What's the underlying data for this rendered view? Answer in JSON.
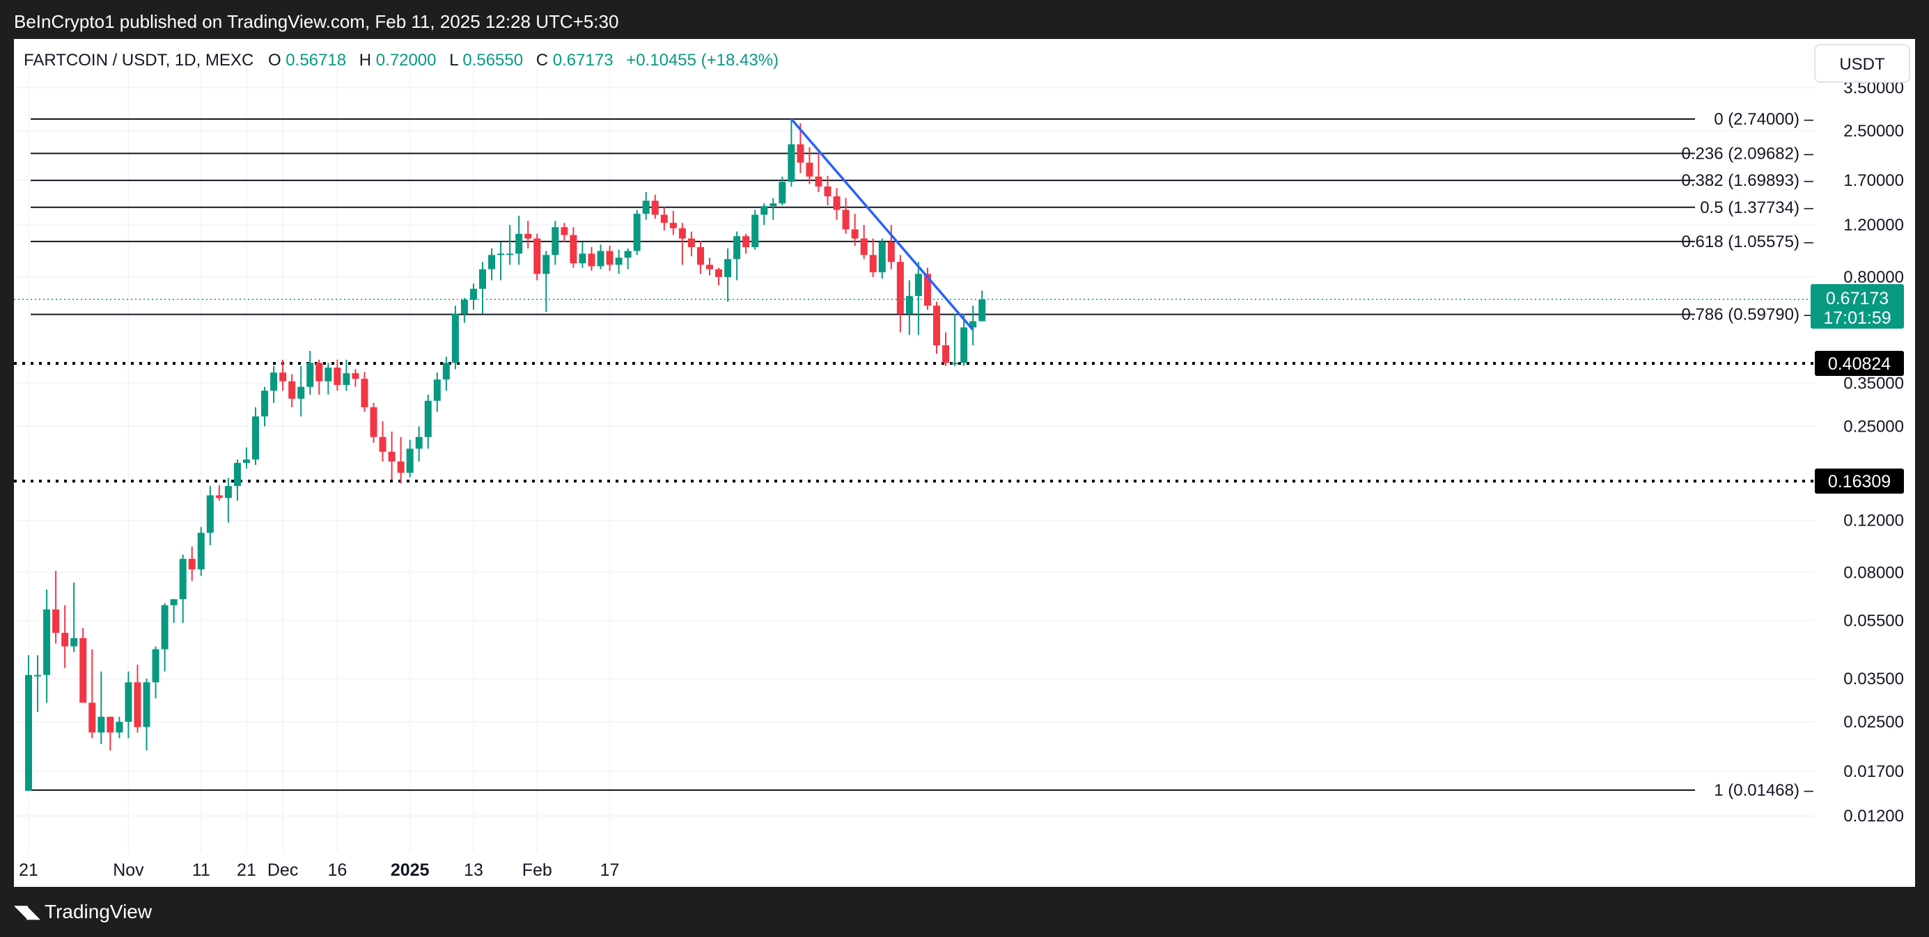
{
  "header": {
    "published": "BeInCrypto1 published on TradingView.com, Feb 11, 2025 12:28 UTC+5:30"
  },
  "footer": {
    "brand": "TradingView",
    "logo_icon": "tradingview-logo-icon"
  },
  "legend": {
    "symbol": "FARTCOIN / USDT, 1D, MEXC",
    "o_label": "O",
    "o_value": "0.56718",
    "h_label": "H",
    "h_value": "0.72000",
    "l_label": "L",
    "l_value": "0.56550",
    "c_label": "C",
    "c_value": "0.67173",
    "change": "+0.10455 (+18.43%)"
  },
  "currency": "USDT",
  "price_badge": {
    "price": "0.67173",
    "countdown": "17:01:59"
  },
  "colors": {
    "up": "#089981",
    "down": "#f23645",
    "trendline": "#2962ff",
    "text": "#131722",
    "grid": "#f0f3fa",
    "current_line": "#089981"
  },
  "chart_data": {
    "type": "candlestick",
    "y_scale": "log",
    "ylim": [
      0.0095,
      3.9
    ],
    "y_ticks": [
      "3.50000",
      "2.50000",
      "1.70000",
      "1.20000",
      "0.80000",
      "0.35000",
      "0.25000",
      "0.12000",
      "0.08000",
      "0.05500",
      "0.03500",
      "0.02500",
      "0.01700",
      "0.01200"
    ],
    "x_ticks": [
      {
        "label": "21",
        "bold": false
      },
      {
        "label": "Nov",
        "bold": false
      },
      {
        "label": "11",
        "bold": false
      },
      {
        "label": "21",
        "bold": false
      },
      {
        "label": "Dec",
        "bold": false
      },
      {
        "label": "16",
        "bold": false
      },
      {
        "label": "2025",
        "bold": true
      },
      {
        "label": "13",
        "bold": false
      },
      {
        "label": "Feb",
        "bold": false
      },
      {
        "label": "17",
        "bold": false
      }
    ],
    "fib_levels": [
      {
        "ratio": "0",
        "value": 2.74,
        "label": "0 (2.74000)"
      },
      {
        "ratio": "0.236",
        "value": 2.09682,
        "label": "0.236 (2.09682)"
      },
      {
        "ratio": "0.382",
        "value": 1.69893,
        "label": "0.382 (1.69893)"
      },
      {
        "ratio": "0.5",
        "value": 1.37734,
        "label": "0.5 (1.37734)"
      },
      {
        "ratio": "0.618",
        "value": 1.05575,
        "label": "0.618 (1.05575)"
      },
      {
        "ratio": "0.786",
        "value": 0.5979,
        "label": "0.786 (0.59790)"
      },
      {
        "ratio": "1",
        "value": 0.01468,
        "label": "1 (0.01468)"
      }
    ],
    "support_levels": [
      {
        "value": 0.40824,
        "label": "0.40824"
      },
      {
        "value": 0.16309,
        "label": "0.16309"
      }
    ],
    "current_price": 0.67173,
    "candles": [
      {
        "o": 0.0146,
        "h": 0.042,
        "l": 0.0146,
        "c": 0.036
      },
      {
        "o": 0.036,
        "h": 0.042,
        "l": 0.027,
        "c": 0.036
      },
      {
        "o": 0.036,
        "h": 0.07,
        "l": 0.029,
        "c": 0.06
      },
      {
        "o": 0.06,
        "h": 0.081,
        "l": 0.046,
        "c": 0.05
      },
      {
        "o": 0.05,
        "h": 0.062,
        "l": 0.038,
        "c": 0.045
      },
      {
        "o": 0.045,
        "h": 0.074,
        "l": 0.043,
        "c": 0.048
      },
      {
        "o": 0.048,
        "h": 0.052,
        "l": 0.029,
        "c": 0.029
      },
      {
        "o": 0.029,
        "h": 0.044,
        "l": 0.022,
        "c": 0.023
      },
      {
        "o": 0.023,
        "h": 0.037,
        "l": 0.021,
        "c": 0.026
      },
      {
        "o": 0.026,
        "h": 0.026,
        "l": 0.02,
        "c": 0.023
      },
      {
        "o": 0.023,
        "h": 0.026,
        "l": 0.022,
        "c": 0.025
      },
      {
        "o": 0.025,
        "h": 0.037,
        "l": 0.022,
        "c": 0.034
      },
      {
        "o": 0.034,
        "h": 0.039,
        "l": 0.023,
        "c": 0.024
      },
      {
        "o": 0.024,
        "h": 0.035,
        "l": 0.02,
        "c": 0.034
      },
      {
        "o": 0.034,
        "h": 0.045,
        "l": 0.03,
        "c": 0.044
      },
      {
        "o": 0.044,
        "h": 0.063,
        "l": 0.037,
        "c": 0.062
      },
      {
        "o": 0.062,
        "h": 0.065,
        "l": 0.054,
        "c": 0.065
      },
      {
        "o": 0.065,
        "h": 0.092,
        "l": 0.054,
        "c": 0.089
      },
      {
        "o": 0.089,
        "h": 0.098,
        "l": 0.075,
        "c": 0.082
      },
      {
        "o": 0.082,
        "h": 0.114,
        "l": 0.078,
        "c": 0.109
      },
      {
        "o": 0.109,
        "h": 0.157,
        "l": 0.099,
        "c": 0.146
      },
      {
        "o": 0.146,
        "h": 0.158,
        "l": 0.14,
        "c": 0.143
      },
      {
        "o": 0.143,
        "h": 0.167,
        "l": 0.118,
        "c": 0.157
      },
      {
        "o": 0.157,
        "h": 0.193,
        "l": 0.14,
        "c": 0.188
      },
      {
        "o": 0.188,
        "h": 0.212,
        "l": 0.18,
        "c": 0.193
      },
      {
        "o": 0.193,
        "h": 0.29,
        "l": 0.185,
        "c": 0.27
      },
      {
        "o": 0.27,
        "h": 0.34,
        "l": 0.25,
        "c": 0.33
      },
      {
        "o": 0.33,
        "h": 0.4,
        "l": 0.3,
        "c": 0.38
      },
      {
        "o": 0.38,
        "h": 0.42,
        "l": 0.33,
        "c": 0.355
      },
      {
        "o": 0.355,
        "h": 0.375,
        "l": 0.29,
        "c": 0.31
      },
      {
        "o": 0.31,
        "h": 0.4,
        "l": 0.27,
        "c": 0.34
      },
      {
        "o": 0.34,
        "h": 0.45,
        "l": 0.32,
        "c": 0.41
      },
      {
        "o": 0.41,
        "h": 0.42,
        "l": 0.32,
        "c": 0.355
      },
      {
        "o": 0.355,
        "h": 0.41,
        "l": 0.32,
        "c": 0.395
      },
      {
        "o": 0.395,
        "h": 0.42,
        "l": 0.33,
        "c": 0.345
      },
      {
        "o": 0.345,
        "h": 0.42,
        "l": 0.33,
        "c": 0.378
      },
      {
        "o": 0.378,
        "h": 0.39,
        "l": 0.34,
        "c": 0.362
      },
      {
        "o": 0.362,
        "h": 0.382,
        "l": 0.28,
        "c": 0.29
      },
      {
        "o": 0.29,
        "h": 0.3,
        "l": 0.22,
        "c": 0.23
      },
      {
        "o": 0.23,
        "h": 0.26,
        "l": 0.19,
        "c": 0.205
      },
      {
        "o": 0.205,
        "h": 0.24,
        "l": 0.165,
        "c": 0.19
      },
      {
        "o": 0.19,
        "h": 0.23,
        "l": 0.16,
        "c": 0.174
      },
      {
        "o": 0.174,
        "h": 0.225,
        "l": 0.168,
        "c": 0.21
      },
      {
        "o": 0.21,
        "h": 0.25,
        "l": 0.19,
        "c": 0.23
      },
      {
        "o": 0.23,
        "h": 0.32,
        "l": 0.21,
        "c": 0.305
      },
      {
        "o": 0.305,
        "h": 0.38,
        "l": 0.28,
        "c": 0.36
      },
      {
        "o": 0.36,
        "h": 0.43,
        "l": 0.33,
        "c": 0.41
      },
      {
        "o": 0.41,
        "h": 0.64,
        "l": 0.39,
        "c": 0.6
      },
      {
        "o": 0.6,
        "h": 0.68,
        "l": 0.56,
        "c": 0.67
      },
      {
        "o": 0.67,
        "h": 0.76,
        "l": 0.62,
        "c": 0.73
      },
      {
        "o": 0.73,
        "h": 0.9,
        "l": 0.6,
        "c": 0.85
      },
      {
        "o": 0.85,
        "h": 1.0,
        "l": 0.78,
        "c": 0.95
      },
      {
        "o": 0.95,
        "h": 1.05,
        "l": 0.78,
        "c": 0.96
      },
      {
        "o": 0.96,
        "h": 1.2,
        "l": 0.88,
        "c": 0.96
      },
      {
        "o": 0.96,
        "h": 1.29,
        "l": 0.88,
        "c": 1.12
      },
      {
        "o": 1.12,
        "h": 1.24,
        "l": 1.0,
        "c": 1.08
      },
      {
        "o": 1.08,
        "h": 1.12,
        "l": 0.78,
        "c": 0.82
      },
      {
        "o": 0.82,
        "h": 0.98,
        "l": 0.61,
        "c": 0.95
      },
      {
        "o": 0.95,
        "h": 1.24,
        "l": 0.88,
        "c": 1.18
      },
      {
        "o": 1.18,
        "h": 1.22,
        "l": 1.05,
        "c": 1.11
      },
      {
        "o": 1.11,
        "h": 1.18,
        "l": 0.86,
        "c": 0.89
      },
      {
        "o": 0.89,
        "h": 1.05,
        "l": 0.86,
        "c": 0.96
      },
      {
        "o": 0.96,
        "h": 1.01,
        "l": 0.84,
        "c": 0.87
      },
      {
        "o": 0.87,
        "h": 1.03,
        "l": 0.85,
        "c": 0.98
      },
      {
        "o": 0.98,
        "h": 1.02,
        "l": 0.84,
        "c": 0.88
      },
      {
        "o": 0.88,
        "h": 0.99,
        "l": 0.82,
        "c": 0.93
      },
      {
        "o": 0.93,
        "h": 1.0,
        "l": 0.85,
        "c": 0.98
      },
      {
        "o": 0.98,
        "h": 1.35,
        "l": 0.95,
        "c": 1.31
      },
      {
        "o": 1.31,
        "h": 1.55,
        "l": 1.25,
        "c": 1.45
      },
      {
        "o": 1.45,
        "h": 1.52,
        "l": 1.26,
        "c": 1.3
      },
      {
        "o": 1.3,
        "h": 1.38,
        "l": 1.15,
        "c": 1.22
      },
      {
        "o": 1.22,
        "h": 1.34,
        "l": 1.11,
        "c": 1.17
      },
      {
        "o": 1.17,
        "h": 1.22,
        "l": 0.88,
        "c": 1.08
      },
      {
        "o": 1.08,
        "h": 1.14,
        "l": 0.94,
        "c": 1.01
      },
      {
        "o": 1.01,
        "h": 1.06,
        "l": 0.82,
        "c": 0.88
      },
      {
        "o": 0.88,
        "h": 0.93,
        "l": 0.81,
        "c": 0.85
      },
      {
        "o": 0.85,
        "h": 0.86,
        "l": 0.75,
        "c": 0.8
      },
      {
        "o": 0.8,
        "h": 1.0,
        "l": 0.66,
        "c": 0.92
      },
      {
        "o": 0.92,
        "h": 1.14,
        "l": 0.78,
        "c": 1.1
      },
      {
        "o": 1.1,
        "h": 1.12,
        "l": 0.96,
        "c": 1.01
      },
      {
        "o": 1.01,
        "h": 1.35,
        "l": 0.99,
        "c": 1.3
      },
      {
        "o": 1.3,
        "h": 1.42,
        "l": 1.2,
        "c": 1.39
      },
      {
        "o": 1.39,
        "h": 1.48,
        "l": 1.25,
        "c": 1.42
      },
      {
        "o": 1.42,
        "h": 1.75,
        "l": 1.4,
        "c": 1.68
      },
      {
        "o": 1.68,
        "h": 2.74,
        "l": 1.62,
        "c": 2.25
      },
      {
        "o": 2.25,
        "h": 2.65,
        "l": 1.8,
        "c": 1.95
      },
      {
        "o": 1.95,
        "h": 2.2,
        "l": 1.65,
        "c": 1.75
      },
      {
        "o": 1.75,
        "h": 2.1,
        "l": 1.55,
        "c": 1.62
      },
      {
        "o": 1.62,
        "h": 1.76,
        "l": 1.4,
        "c": 1.5
      },
      {
        "o": 1.5,
        "h": 1.6,
        "l": 1.25,
        "c": 1.35
      },
      {
        "o": 1.35,
        "h": 1.48,
        "l": 1.12,
        "c": 1.16
      },
      {
        "o": 1.16,
        "h": 1.31,
        "l": 1.02,
        "c": 1.08
      },
      {
        "o": 1.08,
        "h": 1.2,
        "l": 0.92,
        "c": 0.95
      },
      {
        "o": 0.95,
        "h": 1.08,
        "l": 0.8,
        "c": 0.83
      },
      {
        "o": 0.83,
        "h": 1.08,
        "l": 0.79,
        "c": 1.05
      },
      {
        "o": 1.05,
        "h": 1.2,
        "l": 0.85,
        "c": 0.9
      },
      {
        "o": 0.9,
        "h": 0.95,
        "l": 0.52,
        "c": 0.6
      },
      {
        "o": 0.6,
        "h": 0.78,
        "l": 0.51,
        "c": 0.69
      },
      {
        "o": 0.69,
        "h": 0.9,
        "l": 0.51,
        "c": 0.82
      },
      {
        "o": 0.82,
        "h": 0.86,
        "l": 0.62,
        "c": 0.64
      },
      {
        "o": 0.64,
        "h": 0.66,
        "l": 0.44,
        "c": 0.47
      },
      {
        "o": 0.47,
        "h": 0.52,
        "l": 0.4,
        "c": 0.41
      },
      {
        "o": 0.41,
        "h": 0.6,
        "l": 0.4,
        "c": 0.41
      },
      {
        "o": 0.41,
        "h": 0.6,
        "l": 0.4,
        "c": 0.54
      },
      {
        "o": 0.54,
        "h": 0.64,
        "l": 0.47,
        "c": 0.567
      },
      {
        "o": 0.567,
        "h": 0.72,
        "l": 0.5655,
        "c": 0.67173
      }
    ],
    "trendline": {
      "from": {
        "index": 84,
        "price": 2.74
      },
      "to": {
        "index": 104,
        "price": 0.53
      }
    },
    "x_tick_indices": [
      0,
      11,
      19,
      24,
      28,
      34,
      42,
      49,
      56,
      64
    ]
  }
}
